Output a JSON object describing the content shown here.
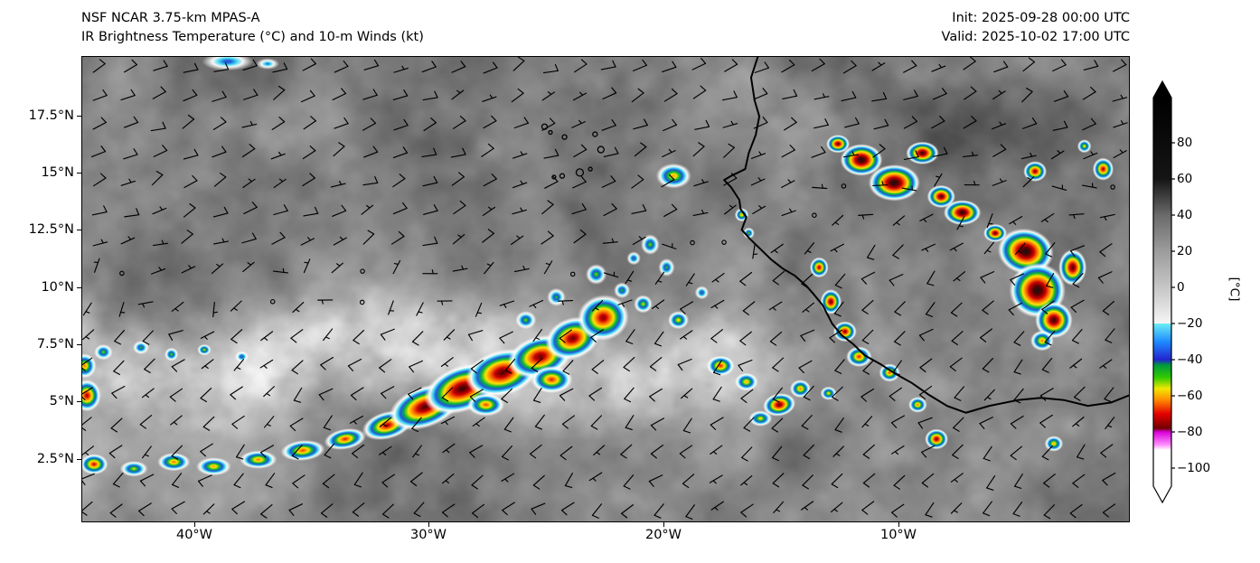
{
  "header": {
    "model_title": "NSF NCAR 3.75-km MPAS-A",
    "product_title": "IR Brightness Temperature (°C) and 10-m Winds (kt)",
    "init_time": "Init: 2025-09-28 00:00 UTC",
    "valid_time": "Valid: 2025-10-02 17:00 UTC"
  },
  "chart_data": {
    "type": "heatmap",
    "title": "IR Brightness Temperature (°C) and 10-m Winds (kt)",
    "model": "NSF NCAR 3.75-km MPAS-A",
    "init": "2025-09-28 00:00 UTC",
    "valid": "2025-10-02 17:00 UTC",
    "x_tick_labels": [
      "40°W",
      "30°W",
      "20°W",
      "10°W"
    ],
    "x_tick_lons": [
      -40,
      -30,
      -20,
      -10
    ],
    "y_tick_labels": [
      "17.5°N",
      "15°N",
      "12.5°N",
      "10°N",
      "7.5°N",
      "5°N",
      "2.5°N"
    ],
    "y_tick_lats": [
      17.5,
      15,
      12.5,
      10,
      7.5,
      5,
      2.5
    ],
    "lon_range": [
      -44.8,
      -0.2
    ],
    "lat_range": [
      -0.2,
      20.1
    ],
    "colorbar": {
      "label": "[°C]",
      "units": "°C",
      "tick_labels": [
        "80",
        "60",
        "40",
        "20",
        "0",
        "−20",
        "−40",
        "−60",
        "−80",
        "−100"
      ],
      "tick_values": [
        80,
        60,
        40,
        20,
        0,
        -20,
        -40,
        -60,
        -80,
        -100
      ],
      "value_range": [
        -110,
        105
      ],
      "stops": [
        [
          105,
          "#000000"
        ],
        [
          60,
          "#151515"
        ],
        [
          40,
          "#6a6a6a"
        ],
        [
          20,
          "#9c9c9c"
        ],
        [
          0,
          "#c6c6c6"
        ],
        [
          -20,
          "#f5f5f5"
        ],
        [
          -20,
          "#6ceef5"
        ],
        [
          -30,
          "#1e8cff"
        ],
        [
          -40,
          "#2323cf"
        ],
        [
          -43,
          "#00993d"
        ],
        [
          -50,
          "#33cc00"
        ],
        [
          -56,
          "#f0e800"
        ],
        [
          -62,
          "#ff9000"
        ],
        [
          -70,
          "#e60000"
        ],
        [
          -78,
          "#700000"
        ],
        [
          -80,
          "#d900d9"
        ],
        [
          -87,
          "#ff8cff"
        ],
        [
          -90,
          "#ffffff"
        ],
        [
          -110,
          "#ffffff"
        ]
      ]
    },
    "wind": {
      "units": "kt",
      "barb_spacing_deg": 1.28,
      "regimes": [
        {
          "region": "north of ITCZ",
          "dir_from": "NE",
          "typical_speed_kt": 10
        },
        {
          "region": "ITCZ axis",
          "dir_from": "variable/calm",
          "typical_speed_kt": 3
        },
        {
          "region": "south of ITCZ monsoon",
          "dir_from": "SW",
          "typical_speed_kt": 10
        }
      ]
    },
    "convective_systems_columns": "[lon, lat, rx_deg, ry_deg, rot_deg, intensity(0=warm cyan only, 1=black overshooting top)]",
    "convective_systems": [
      [
        -31.8,
        4.0,
        1.1,
        0.6,
        -15,
        0.7
      ],
      [
        -30.2,
        4.8,
        1.6,
        0.9,
        -20,
        0.85
      ],
      [
        -28.6,
        5.6,
        1.7,
        1.0,
        -20,
        0.9
      ],
      [
        -26.9,
        6.3,
        1.6,
        1.0,
        -15,
        0.85
      ],
      [
        -25.3,
        7.0,
        1.4,
        0.9,
        -15,
        0.8
      ],
      [
        -23.9,
        7.8,
        1.2,
        0.9,
        -20,
        0.8
      ],
      [
        -22.6,
        8.7,
        1.1,
        1.0,
        -10,
        0.75
      ],
      [
        -24.8,
        6.0,
        0.9,
        0.6,
        0,
        0.6
      ],
      [
        -27.6,
        4.9,
        0.8,
        0.5,
        0,
        0.55
      ],
      [
        -25.9,
        8.6,
        0.45,
        0.4,
        0,
        0.3
      ],
      [
        -24.6,
        9.6,
        0.4,
        0.4,
        0,
        0.25
      ],
      [
        -22.9,
        10.6,
        0.45,
        0.45,
        0,
        0.3
      ],
      [
        -21.8,
        9.9,
        0.35,
        0.35,
        0,
        0.25
      ],
      [
        -21.3,
        11.3,
        0.3,
        0.3,
        0,
        0.2
      ],
      [
        -33.6,
        3.4,
        0.9,
        0.45,
        -10,
        0.6
      ],
      [
        -35.4,
        2.9,
        0.95,
        0.45,
        -5,
        0.55
      ],
      [
        -37.3,
        2.5,
        0.8,
        0.4,
        0,
        0.5
      ],
      [
        -39.2,
        2.2,
        0.75,
        0.4,
        0,
        0.45
      ],
      [
        -40.9,
        2.4,
        0.7,
        0.4,
        0,
        0.5
      ],
      [
        -42.6,
        2.1,
        0.6,
        0.35,
        0,
        0.35
      ],
      [
        -44.3,
        2.3,
        0.6,
        0.45,
        0,
        0.65
      ],
      [
        -44.6,
        5.3,
        0.6,
        0.7,
        0,
        0.7
      ],
      [
        -44.7,
        6.6,
        0.5,
        0.55,
        0,
        0.5
      ],
      [
        -43.9,
        7.2,
        0.4,
        0.35,
        0,
        0.3
      ],
      [
        -42.3,
        7.4,
        0.35,
        0.3,
        0,
        0.25
      ],
      [
        -41.0,
        7.1,
        0.3,
        0.3,
        0,
        0.3
      ],
      [
        -39.6,
        7.3,
        0.3,
        0.25,
        0,
        0.35
      ],
      [
        -38.0,
        7.0,
        0.3,
        0.25,
        0,
        0.2
      ],
      [
        -19.6,
        14.9,
        0.75,
        0.55,
        0,
        0.45
      ],
      [
        -38.6,
        19.9,
        1.1,
        0.4,
        0,
        0.15
      ],
      [
        -36.9,
        19.8,
        0.5,
        0.25,
        0,
        0.1
      ],
      [
        -20.6,
        11.9,
        0.4,
        0.45,
        0,
        0.3
      ],
      [
        -19.9,
        10.9,
        0.35,
        0.4,
        0,
        0.25
      ],
      [
        -20.9,
        9.3,
        0.4,
        0.4,
        0,
        0.35
      ],
      [
        -19.4,
        8.6,
        0.45,
        0.4,
        0,
        0.4
      ],
      [
        -18.4,
        9.8,
        0.3,
        0.3,
        0,
        0.2
      ],
      [
        -17.6,
        6.6,
        0.6,
        0.45,
        0,
        0.6
      ],
      [
        -16.5,
        5.9,
        0.5,
        0.4,
        0,
        0.45
      ],
      [
        -15.1,
        4.9,
        0.7,
        0.5,
        -10,
        0.8
      ],
      [
        -14.2,
        5.6,
        0.45,
        0.4,
        0,
        0.5
      ],
      [
        -15.9,
        4.3,
        0.5,
        0.35,
        0,
        0.4
      ],
      [
        -13.4,
        10.9,
        0.4,
        0.45,
        0,
        0.7
      ],
      [
        -12.9,
        9.4,
        0.45,
        0.55,
        0,
        0.8
      ],
      [
        -12.3,
        8.1,
        0.5,
        0.45,
        0,
        0.75
      ],
      [
        -11.7,
        7.0,
        0.55,
        0.45,
        0,
        0.6
      ],
      [
        -10.4,
        6.3,
        0.45,
        0.4,
        0,
        0.55
      ],
      [
        -16.7,
        13.2,
        0.3,
        0.3,
        0,
        0.45
      ],
      [
        -16.4,
        12.4,
        0.25,
        0.25,
        0,
        0.3
      ],
      [
        -12.6,
        16.3,
        0.5,
        0.4,
        0,
        0.8
      ],
      [
        -11.6,
        15.6,
        0.9,
        0.7,
        0,
        1.0
      ],
      [
        -10.2,
        14.6,
        1.1,
        0.8,
        0,
        1.0
      ],
      [
        -9.0,
        15.9,
        0.7,
        0.5,
        0,
        0.9
      ],
      [
        -8.2,
        14.0,
        0.6,
        0.5,
        0,
        0.85
      ],
      [
        -7.3,
        13.3,
        0.8,
        0.55,
        0,
        0.95
      ],
      [
        -5.9,
        12.4,
        0.5,
        0.4,
        0,
        0.8
      ],
      [
        -4.2,
        15.1,
        0.5,
        0.45,
        0,
        0.75
      ],
      [
        -1.3,
        15.2,
        0.45,
        0.5,
        0,
        0.7
      ],
      [
        -2.1,
        16.2,
        0.3,
        0.3,
        0,
        0.4
      ],
      [
        -4.6,
        11.6,
        1.2,
        1.0,
        10,
        1.0
      ],
      [
        -4.1,
        9.9,
        1.2,
        1.2,
        0,
        1.0
      ],
      [
        -3.4,
        8.6,
        0.8,
        0.8,
        0,
        0.9
      ],
      [
        -3.9,
        7.7,
        0.5,
        0.45,
        0,
        0.5
      ],
      [
        -2.6,
        10.9,
        0.6,
        0.8,
        0,
        0.85
      ],
      [
        -9.2,
        4.9,
        0.4,
        0.35,
        0,
        0.5
      ],
      [
        -8.4,
        3.4,
        0.5,
        0.45,
        0,
        0.75
      ],
      [
        -3.4,
        3.2,
        0.4,
        0.35,
        0,
        0.45
      ],
      [
        -13.0,
        5.4,
        0.35,
        0.3,
        0,
        0.4
      ]
    ],
    "coastline": [
      [
        -16.0,
        20.15
      ],
      [
        -16.3,
        19.2
      ],
      [
        -16.15,
        18.2
      ],
      [
        -15.95,
        17.5
      ],
      [
        -16.1,
        16.7
      ],
      [
        -16.4,
        15.9
      ],
      [
        -16.55,
        15.2
      ],
      [
        -17.15,
        14.9
      ],
      [
        -17.45,
        14.72
      ],
      [
        -17.15,
        14.4
      ],
      [
        -16.8,
        13.85
      ],
      [
        -16.75,
        13.45
      ],
      [
        -16.5,
        13.1
      ],
      [
        -16.7,
        12.55
      ],
      [
        -16.35,
        12.15
      ],
      [
        -15.85,
        11.65
      ],
      [
        -15.45,
        11.25
      ],
      [
        -14.95,
        10.85
      ],
      [
        -14.45,
        10.55
      ],
      [
        -13.95,
        10.1
      ],
      [
        -13.65,
        9.75
      ],
      [
        -13.25,
        9.25
      ],
      [
        -13.05,
        8.85
      ],
      [
        -12.85,
        8.45
      ],
      [
        -12.45,
        7.95
      ],
      [
        -11.95,
        7.55
      ],
      [
        -11.45,
        7.05
      ],
      [
        -10.75,
        6.65
      ],
      [
        -10.15,
        6.25
      ],
      [
        -9.45,
        5.85
      ],
      [
        -8.75,
        5.35
      ],
      [
        -7.95,
        4.85
      ],
      [
        -7.15,
        4.55
      ],
      [
        -6.15,
        4.85
      ],
      [
        -4.95,
        5.1
      ],
      [
        -3.95,
        5.2
      ],
      [
        -2.95,
        5.1
      ],
      [
        -1.95,
        4.85
      ],
      [
        -0.95,
        5.0
      ],
      [
        -0.1,
        5.35
      ]
    ],
    "islands_columns": "[lon, lat, radius_px] (Cape Verde)",
    "islands": [
      [
        -25.1,
        17.05,
        3
      ],
      [
        -24.85,
        16.8,
        2
      ],
      [
        -24.25,
        16.6,
        2.5
      ],
      [
        -22.95,
        16.72,
        2.5
      ],
      [
        -22.7,
        16.05,
        3.5
      ],
      [
        -23.6,
        15.05,
        4
      ],
      [
        -24.35,
        14.9,
        2.5
      ],
      [
        -23.15,
        15.2,
        2
      ],
      [
        -24.7,
        14.85,
        2
      ]
    ]
  }
}
